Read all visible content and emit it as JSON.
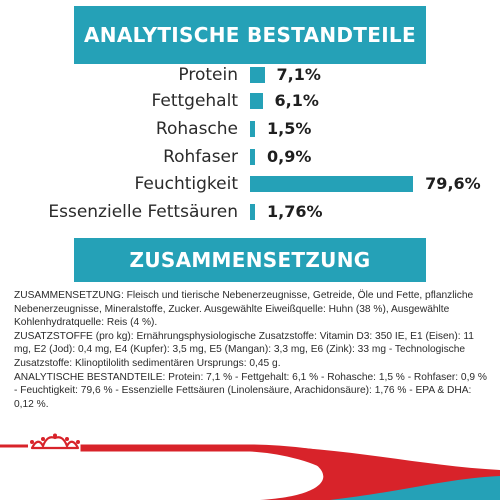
{
  "analysis": {
    "title": "ANALYTISCHE BESTANDTEILE",
    "rows": [
      {
        "label": "Protein",
        "value_text": "7,1%",
        "value": 7.1
      },
      {
        "label": "Fettgehalt",
        "value_text": "6,1%",
        "value": 6.1
      },
      {
        "label": "Rohasche",
        "value_text": "1,5%",
        "value": 1.5
      },
      {
        "label": "Rohfaser",
        "value_text": "0,9%",
        "value": 0.9
      },
      {
        "label": "Feuchtigkeit",
        "value_text": "79,6%",
        "value": 79.6
      },
      {
        "label": "Essenzielle Fettsäuren",
        "value_text": "1,76%",
        "value": 1.76
      }
    ]
  },
  "composition": {
    "title": "ZUSAMMENSETZUNG",
    "paragraphs": [
      "ZUSAMMENSETZUNG: Fleisch und tierische Nebenerzeugnisse, Getreide, Öle und Fette, pflanzliche Nebenerzeugnisse, Mineralstoffe, Zucker. Ausgewählte Eiweißquelle: Huhn (38 %), Ausgewählte Kohlenhydratquelle: Reis (4 %).",
      "ZUSATZSTOFFE (pro kg): Ernährungsphysiologische Zusatzstoffe: Vitamin D3: 350 IE, E1 (Eisen): 11 mg, E2 (Jod): 0,4 mg, E4 (Kupfer): 3,5 mg, E5 (Mangan): 3,3 mg, E6 (Zink): 33 mg - Technologische Zusatzstoffe: Klinoptilolith sedimentären Ursprungs: 0,45 g.",
      "ANALYTISCHE BESTANDTEILE: Protein: 7,1 % - Fettgehalt: 6,1 % - Rohasche: 1,5 % - Rohfaser: 0,9 % - Feuchtigkeit: 79,6 % - Essenzielle Fettsäuren (Linolensäure, Arachidonsäure): 1,76 % - EPA & DHA: 0,12 %."
    ]
  },
  "colors": {
    "accent": "#25a1b7",
    "brand_red": "#d8232a",
    "wave_blue": "#25a1b7"
  },
  "logo": {
    "icon": "crown-icon"
  }
}
